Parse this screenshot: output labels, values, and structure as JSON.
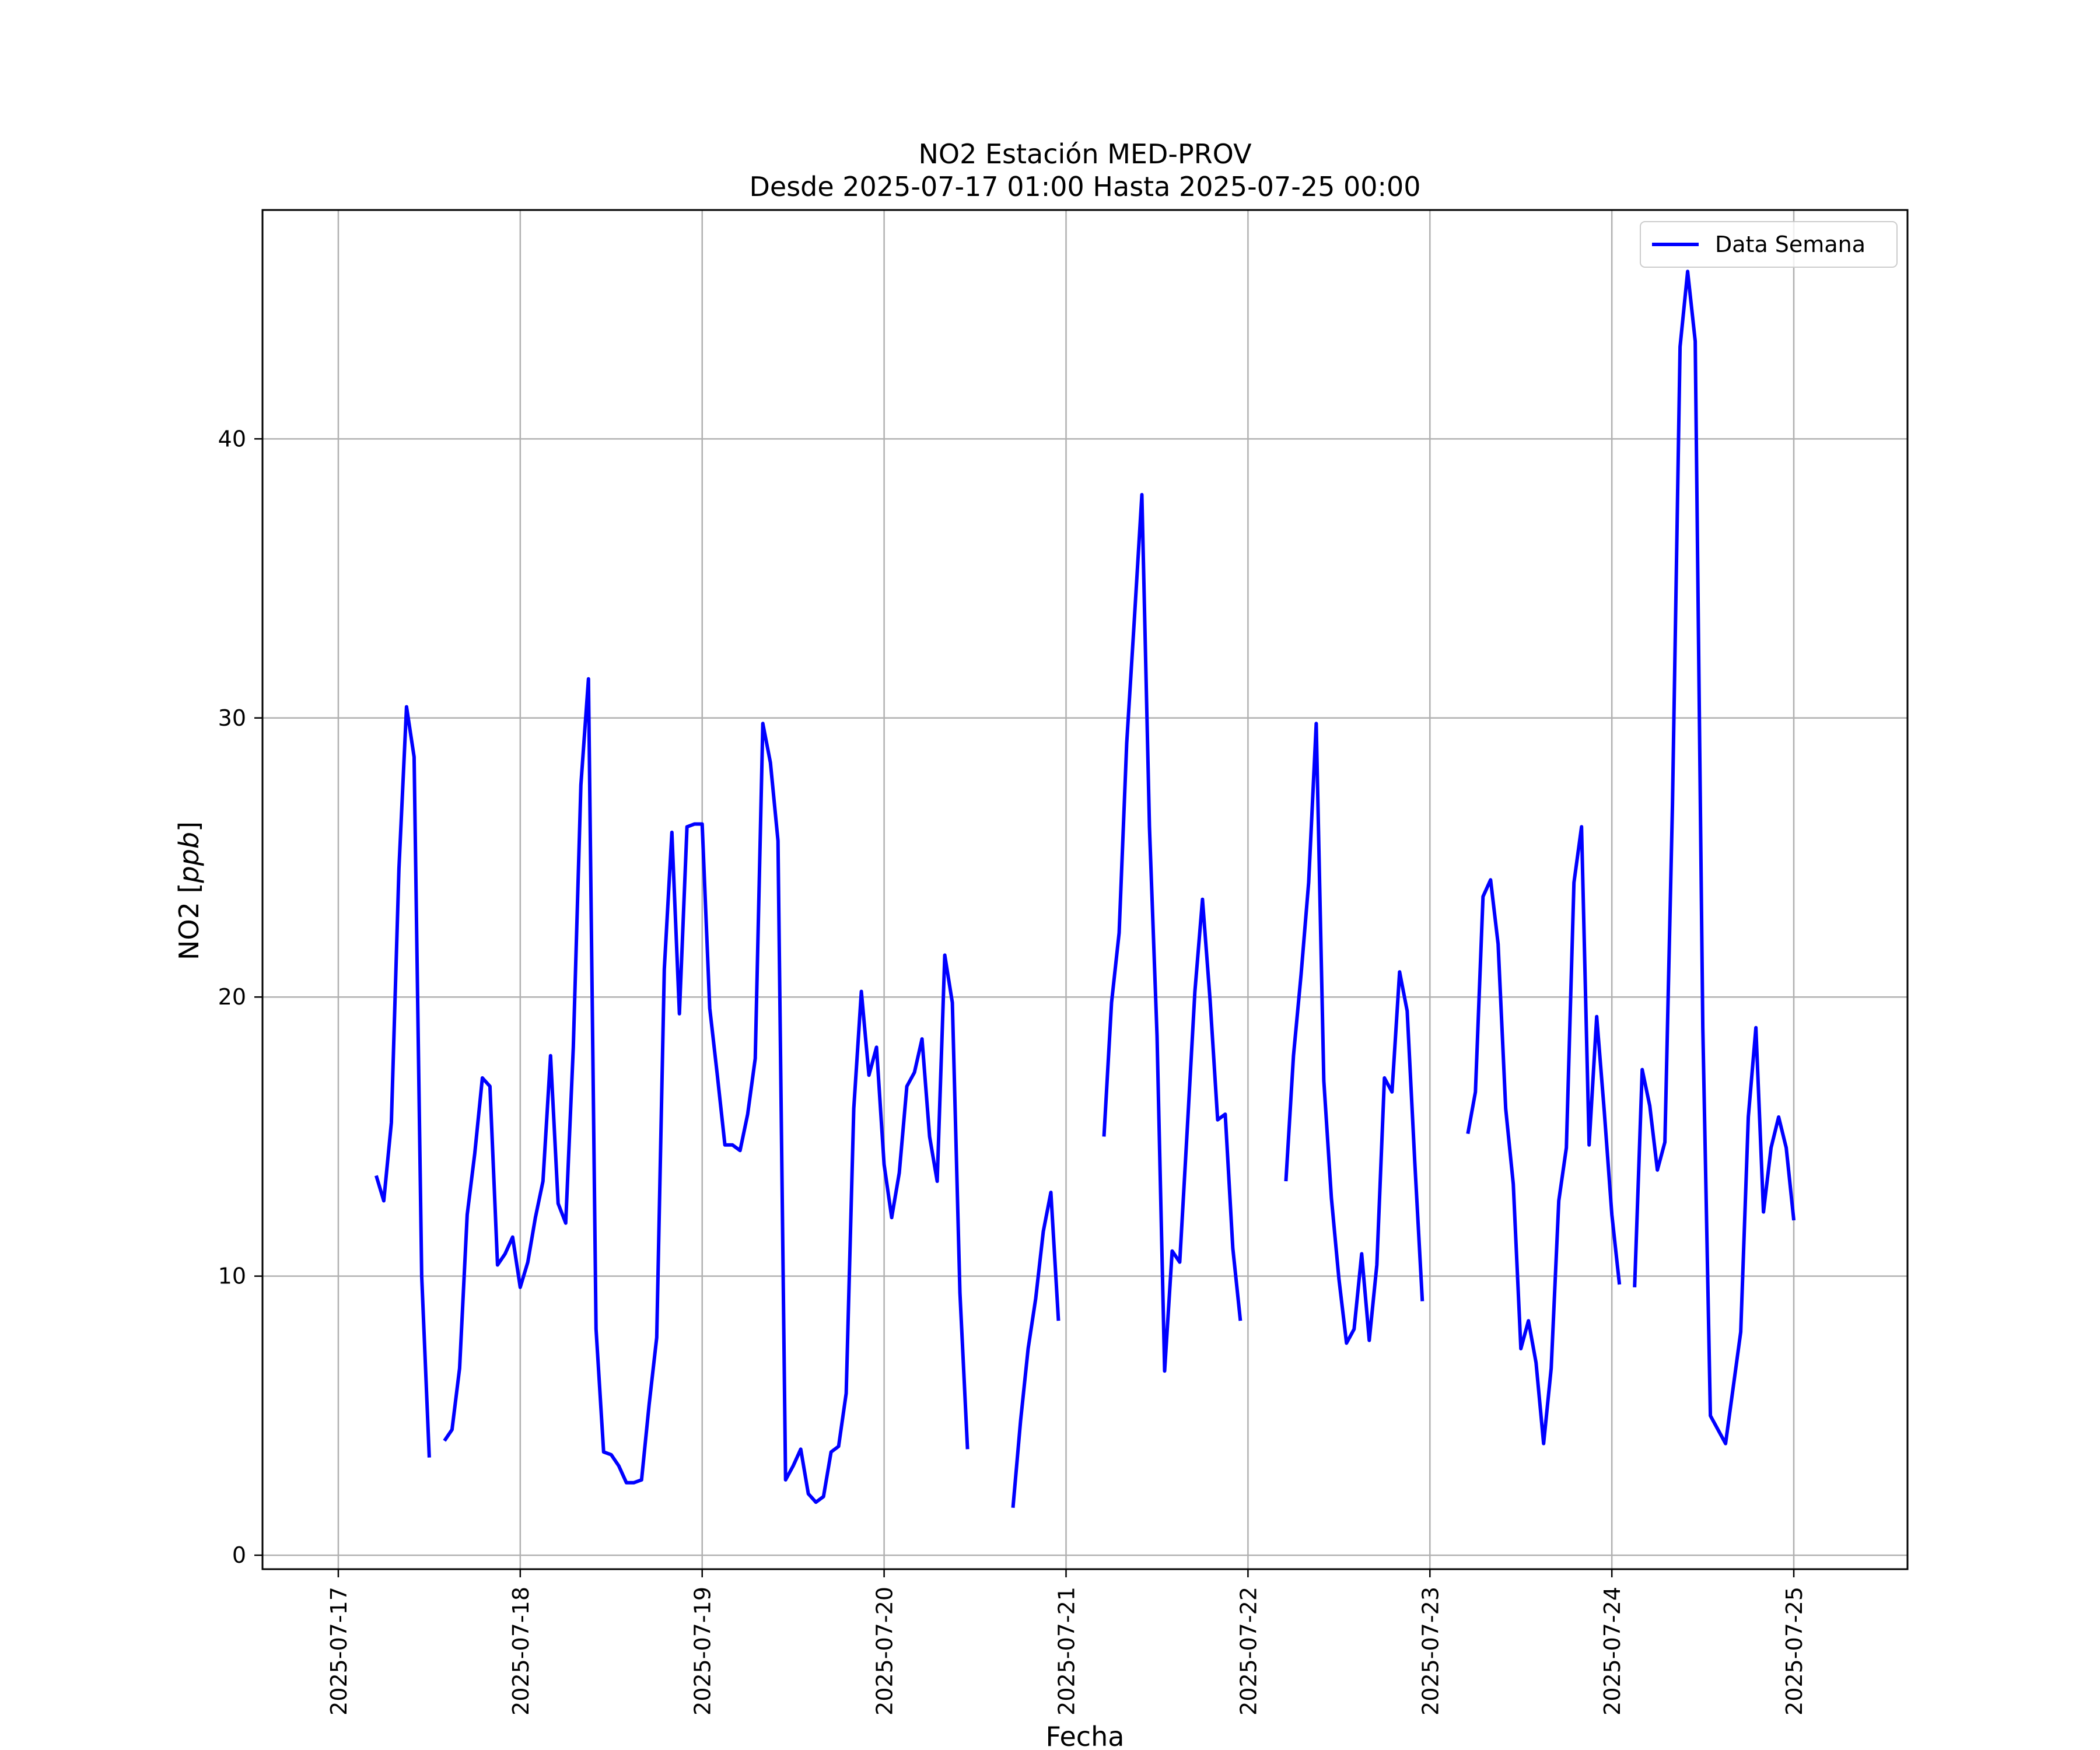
{
  "chart_data": {
    "type": "line",
    "title": "NO2 Estación MED-PROV",
    "subtitle": "Desde 2025-07-17 01:00 Hasta 2025-07-25 00:00",
    "xlabel": "Fecha",
    "ylabel": "NO2 [ppb]",
    "ylabel_main": "NO2 [",
    "ylabel_unit": "ppb",
    "ylabel_close": "]",
    "xlim": [
      "2025-07-16T14:00",
      "2025-07-25T15:00"
    ],
    "ylim": [
      -0.5,
      48.2
    ],
    "x_ticks": [
      "2025-07-17",
      "2025-07-18",
      "2025-07-19",
      "2025-07-20",
      "2025-07-21",
      "2025-07-22",
      "2025-07-23",
      "2025-07-24",
      "2025-07-25"
    ],
    "y_ticks": [
      0,
      10,
      20,
      30,
      40
    ],
    "y_tick_labels": [
      "0",
      "10",
      "20",
      "30",
      "40"
    ],
    "grid": true,
    "legend_position": "top-right",
    "series": [
      {
        "name": "Data Semana",
        "color": "#0000ff",
        "segments": [
          [
            [
              "2025-07-17T05:00",
              13.6
            ],
            [
              "2025-07-17T06:00",
              12.7
            ],
            [
              "2025-07-17T07:00",
              15.5
            ],
            [
              "2025-07-17T08:00",
              24.6
            ],
            [
              "2025-07-17T09:00",
              30.4
            ],
            [
              "2025-07-17T10:00",
              28.6
            ],
            [
              "2025-07-17T11:00",
              10.0
            ],
            [
              "2025-07-17T12:00",
              3.5
            ]
          ],
          [
            [
              "2025-07-17T14:00",
              4.1
            ],
            [
              "2025-07-17T15:00",
              4.5
            ],
            [
              "2025-07-17T16:00",
              6.7
            ],
            [
              "2025-07-17T17:00",
              12.2
            ],
            [
              "2025-07-17T18:00",
              14.4
            ],
            [
              "2025-07-17T19:00",
              17.1
            ],
            [
              "2025-07-17T20:00",
              16.8
            ],
            [
              "2025-07-17T21:00",
              10.4
            ],
            [
              "2025-07-17T22:00",
              10.8
            ],
            [
              "2025-07-17T23:00",
              11.4
            ],
            [
              "2025-07-18T00:00",
              9.6
            ],
            [
              "2025-07-18T01:00",
              10.5
            ],
            [
              "2025-07-18T02:00",
              12.1
            ],
            [
              "2025-07-18T03:00",
              13.4
            ],
            [
              "2025-07-18T04:00",
              17.9
            ],
            [
              "2025-07-18T05:00",
              12.6
            ],
            [
              "2025-07-18T06:00",
              11.9
            ],
            [
              "2025-07-18T07:00",
              18.2
            ],
            [
              "2025-07-18T08:00",
              27.6
            ],
            [
              "2025-07-18T09:00",
              31.4
            ],
            [
              "2025-07-18T10:00",
              8.1
            ],
            [
              "2025-07-18T11:00",
              3.7
            ],
            [
              "2025-07-18T12:00",
              3.6
            ],
            [
              "2025-07-18T13:00",
              3.2
            ],
            [
              "2025-07-18T14:00",
              2.6
            ],
            [
              "2025-07-18T15:00",
              2.6
            ],
            [
              "2025-07-18T16:00",
              2.7
            ],
            [
              "2025-07-18T17:00",
              5.4
            ],
            [
              "2025-07-18T18:00",
              7.8
            ],
            [
              "2025-07-18T19:00",
              21.0
            ],
            [
              "2025-07-18T20:00",
              25.9
            ],
            [
              "2025-07-18T21:00",
              19.4
            ],
            [
              "2025-07-18T22:00",
              26.1
            ],
            [
              "2025-07-18T23:00",
              26.2
            ],
            [
              "2025-07-19T00:00",
              26.2
            ],
            [
              "2025-07-19T01:00",
              19.6
            ],
            [
              "2025-07-19T02:00",
              17.2
            ],
            [
              "2025-07-19T03:00",
              14.7
            ],
            [
              "2025-07-19T04:00",
              14.7
            ],
            [
              "2025-07-19T05:00",
              14.5
            ],
            [
              "2025-07-19T06:00",
              15.8
            ],
            [
              "2025-07-19T07:00",
              17.8
            ],
            [
              "2025-07-19T08:00",
              29.8
            ],
            [
              "2025-07-19T09:00",
              28.4
            ],
            [
              "2025-07-19T10:00",
              25.6
            ],
            [
              "2025-07-19T11:00",
              2.7
            ],
            [
              "2025-07-19T12:00",
              3.2
            ],
            [
              "2025-07-19T13:00",
              3.8
            ],
            [
              "2025-07-19T14:00",
              2.2
            ],
            [
              "2025-07-19T15:00",
              1.9
            ],
            [
              "2025-07-19T16:00",
              2.1
            ],
            [
              "2025-07-19T17:00",
              3.7
            ],
            [
              "2025-07-19T18:00",
              3.9
            ],
            [
              "2025-07-19T19:00",
              5.8
            ],
            [
              "2025-07-19T20:00",
              16.0
            ],
            [
              "2025-07-19T21:00",
              20.2
            ],
            [
              "2025-07-19T22:00",
              17.2
            ],
            [
              "2025-07-19T23:00",
              18.2
            ],
            [
              "2025-07-20T00:00",
              14.0
            ],
            [
              "2025-07-20T01:00",
              12.1
            ],
            [
              "2025-07-20T02:00",
              13.7
            ],
            [
              "2025-07-20T03:00",
              16.8
            ],
            [
              "2025-07-20T04:00",
              17.3
            ],
            [
              "2025-07-20T05:00",
              18.5
            ],
            [
              "2025-07-20T06:00",
              15.0
            ],
            [
              "2025-07-20T07:00",
              13.4
            ],
            [
              "2025-07-20T08:00",
              21.5
            ],
            [
              "2025-07-20T09:00",
              19.8
            ],
            [
              "2025-07-20T10:00",
              9.4
            ],
            [
              "2025-07-20T11:00",
              3.8
            ]
          ],
          [
            [
              "2025-07-20T17:00",
              1.7
            ],
            [
              "2025-07-20T18:00",
              4.8
            ],
            [
              "2025-07-20T19:00",
              7.4
            ],
            [
              "2025-07-20T20:00",
              9.2
            ],
            [
              "2025-07-20T21:00",
              11.6
            ],
            [
              "2025-07-20T22:00",
              13.0
            ],
            [
              "2025-07-20T23:00",
              8.4
            ]
          ],
          [
            [
              "2025-07-21T05:00",
              15.0
            ],
            [
              "2025-07-21T06:00",
              19.8
            ],
            [
              "2025-07-21T07:00",
              22.3
            ],
            [
              "2025-07-21T08:00",
              29.1
            ],
            [
              "2025-07-21T09:00",
              33.5
            ],
            [
              "2025-07-21T10:00",
              38.0
            ],
            [
              "2025-07-21T11:00",
              26.1
            ],
            [
              "2025-07-21T12:00",
              18.6
            ],
            [
              "2025-07-21T13:00",
              6.6
            ],
            [
              "2025-07-21T14:00",
              10.9
            ],
            [
              "2025-07-21T15:00",
              10.5
            ],
            [
              "2025-07-21T16:00",
              15.3
            ],
            [
              "2025-07-21T17:00",
              20.2
            ],
            [
              "2025-07-21T18:00",
              23.5
            ],
            [
              "2025-07-21T19:00",
              19.9
            ],
            [
              "2025-07-21T20:00",
              15.6
            ],
            [
              "2025-07-21T21:00",
              15.8
            ],
            [
              "2025-07-21T22:00",
              11.0
            ],
            [
              "2025-07-21T23:00",
              8.4
            ]
          ],
          [
            [
              "2025-07-22T05:00",
              13.4
            ],
            [
              "2025-07-22T06:00",
              17.9
            ],
            [
              "2025-07-22T07:00",
              20.8
            ],
            [
              "2025-07-22T08:00",
              24.1
            ],
            [
              "2025-07-22T09:00",
              29.8
            ],
            [
              "2025-07-22T10:00",
              17.0
            ],
            [
              "2025-07-22T11:00",
              12.8
            ],
            [
              "2025-07-22T12:00",
              9.9
            ],
            [
              "2025-07-22T13:00",
              7.6
            ],
            [
              "2025-07-22T14:00",
              8.1
            ],
            [
              "2025-07-22T15:00",
              10.8
            ],
            [
              "2025-07-22T16:00",
              7.7
            ],
            [
              "2025-07-22T17:00",
              10.4
            ],
            [
              "2025-07-22T18:00",
              17.1
            ],
            [
              "2025-07-22T19:00",
              16.6
            ],
            [
              "2025-07-22T20:00",
              20.9
            ],
            [
              "2025-07-22T21:00",
              19.5
            ],
            [
              "2025-07-22T22:00",
              14.1
            ],
            [
              "2025-07-22T23:00",
              9.1
            ]
          ],
          [
            [
              "2025-07-23T05:00",
              15.1
            ],
            [
              "2025-07-23T06:00",
              16.6
            ],
            [
              "2025-07-23T07:00",
              23.6
            ],
            [
              "2025-07-23T08:00",
              24.2
            ],
            [
              "2025-07-23T09:00",
              21.9
            ],
            [
              "2025-07-23T10:00",
              16.0
            ],
            [
              "2025-07-23T11:00",
              13.3
            ],
            [
              "2025-07-23T12:00",
              7.4
            ],
            [
              "2025-07-23T13:00",
              8.4
            ],
            [
              "2025-07-23T14:00",
              6.9
            ],
            [
              "2025-07-23T15:00",
              4.0
            ],
            [
              "2025-07-23T16:00",
              6.7
            ],
            [
              "2025-07-23T17:00",
              12.7
            ],
            [
              "2025-07-23T18:00",
              14.6
            ],
            [
              "2025-07-23T19:00",
              24.1
            ],
            [
              "2025-07-23T20:00",
              26.1
            ],
            [
              "2025-07-23T21:00",
              14.7
            ],
            [
              "2025-07-23T22:00",
              19.3
            ],
            [
              "2025-07-23T23:00",
              15.9
            ],
            [
              "2025-07-24T00:00",
              12.2
            ],
            [
              "2025-07-24T01:00",
              9.7
            ]
          ],
          [
            [
              "2025-07-24T03:00",
              9.6
            ],
            [
              "2025-07-24T04:00",
              17.4
            ],
            [
              "2025-07-24T05:00",
              16.1
            ],
            [
              "2025-07-24T06:00",
              13.8
            ],
            [
              "2025-07-24T07:00",
              14.8
            ],
            [
              "2025-07-24T08:00",
              26.9
            ],
            [
              "2025-07-24T09:00",
              43.3
            ],
            [
              "2025-07-24T10:00",
              46.0
            ],
            [
              "2025-07-24T11:00",
              43.5
            ],
            [
              "2025-07-24T12:00",
              18.9
            ],
            [
              "2025-07-24T13:00",
              5.0
            ],
            [
              "2025-07-24T14:00",
              4.5
            ],
            [
              "2025-07-24T15:00",
              4.0
            ],
            [
              "2025-07-24T16:00",
              6.0
            ],
            [
              "2025-07-24T17:00",
              8.0
            ],
            [
              "2025-07-24T18:00",
              15.7
            ],
            [
              "2025-07-24T19:00",
              18.9
            ],
            [
              "2025-07-24T20:00",
              12.3
            ],
            [
              "2025-07-24T21:00",
              14.6
            ],
            [
              "2025-07-24T22:00",
              15.7
            ],
            [
              "2025-07-24T23:00",
              14.6
            ],
            [
              "2025-07-25T00:00",
              12.0
            ]
          ]
        ]
      }
    ]
  }
}
